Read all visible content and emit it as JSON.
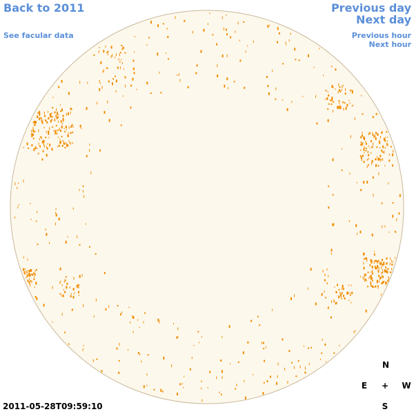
{
  "links": {
    "back": "Back to 2011",
    "facular": "See facular data",
    "previous_day": "Previous day",
    "next_day": "Next day",
    "previous_hour": "Previous hour",
    "next_hour": "Next hour"
  },
  "timestamp": "2011-05-28T09:59:10",
  "compass": {
    "north": "N",
    "east": "E",
    "center": "+",
    "west": "W",
    "south": "S"
  }
}
